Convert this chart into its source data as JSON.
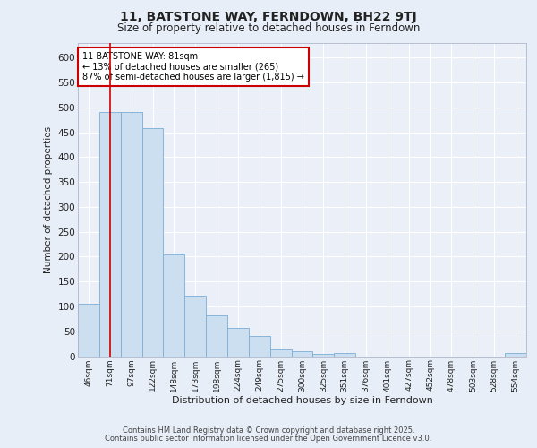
{
  "title_line1": "11, BATSTONE WAY, FERNDOWN, BH22 9TJ",
  "title_line2": "Size of property relative to detached houses in Ferndown",
  "xlabel": "Distribution of detached houses by size in Ferndown",
  "ylabel": "Number of detached properties",
  "categories": [
    "46sqm",
    "71sqm",
    "97sqm",
    "122sqm",
    "148sqm",
    "173sqm",
    "198sqm",
    "224sqm",
    "249sqm",
    "275sqm",
    "300sqm",
    "325sqm",
    "351sqm",
    "376sqm",
    "401sqm",
    "427sqm",
    "452sqm",
    "478sqm",
    "503sqm",
    "528sqm",
    "554sqm"
  ],
  "bar_heights": [
    105,
    490,
    490,
    458,
    205,
    122,
    82,
    57,
    40,
    14,
    10,
    4,
    7,
    0,
    0,
    0,
    0,
    0,
    0,
    0,
    7
  ],
  "bar_fill": "#ccdff0",
  "bar_edge": "#7bafd4",
  "red_line_index": 1.5,
  "annotation_text": "11 BATSTONE WAY: 81sqm\n← 13% of detached houses are smaller (265)\n87% of semi-detached houses are larger (1,815) →",
  "annotation_box_color": "#ffffff",
  "annotation_box_edge": "#cc0000",
  "footer_line1": "Contains HM Land Registry data © Crown copyright and database right 2025.",
  "footer_line2": "Contains public sector information licensed under the Open Government Licence v3.0.",
  "bg_color": "#e8eef7",
  "plot_bg": "#eaeff8",
  "grid_color": "#ffffff",
  "ylim": [
    0,
    630
  ],
  "yticks": [
    0,
    50,
    100,
    150,
    200,
    250,
    300,
    350,
    400,
    450,
    500,
    550,
    600
  ]
}
